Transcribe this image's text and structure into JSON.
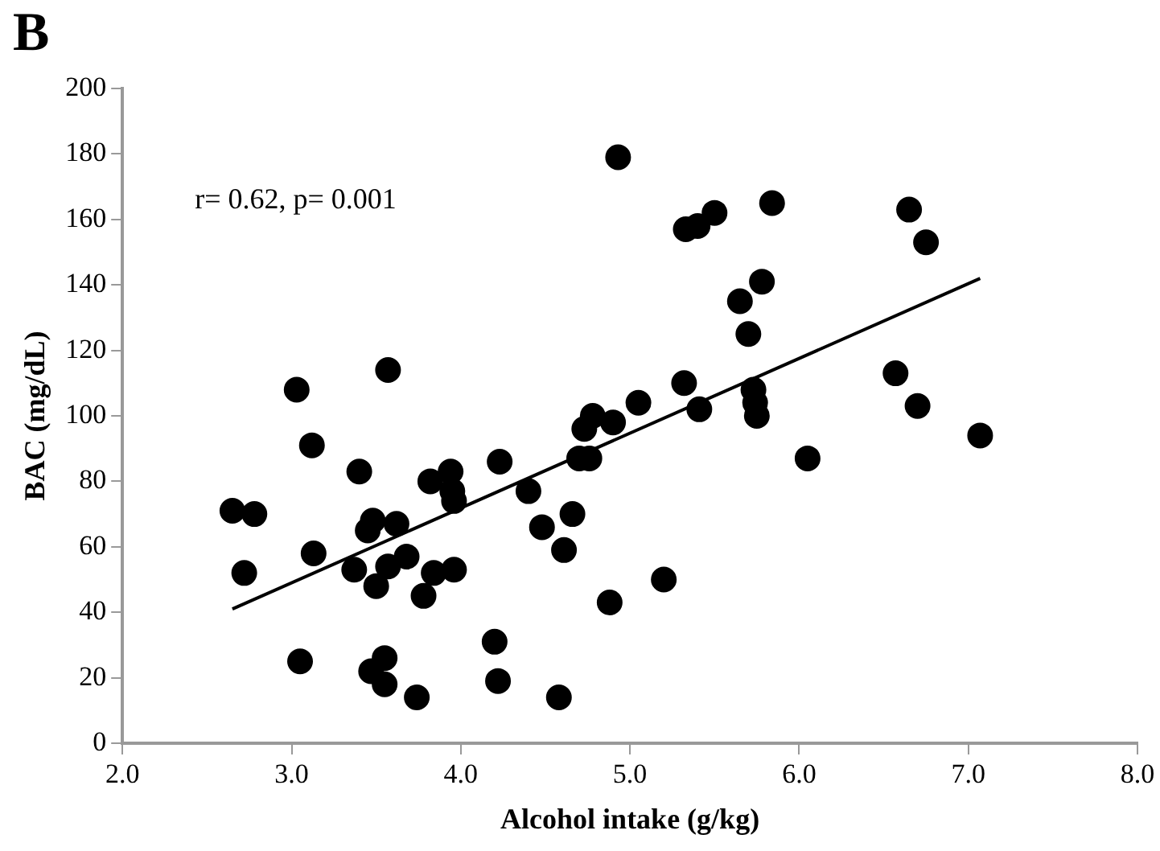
{
  "chart_data": {
    "type": "scatter",
    "title": "B",
    "xlabel": "Alcohol intake (g/kg)",
    "ylabel": "BAC (mg/dL)",
    "annotations": [
      "r= 0.62, p= 0.001"
    ],
    "marker": "circle",
    "grid": false,
    "legend": false,
    "xlim": [
      2,
      8
    ],
    "xticks": [
      {
        "value": 2,
        "label": "2.0"
      },
      {
        "value": 3,
        "label": "3.0"
      },
      {
        "value": 4,
        "label": "4.0"
      },
      {
        "value": 5,
        "label": "5.0"
      },
      {
        "value": 6,
        "label": "6.0"
      },
      {
        "value": 7,
        "label": "7.0"
      },
      {
        "value": 8,
        "label": "8.0"
      }
    ],
    "ylim": [
      0,
      200
    ],
    "yticks": [
      0,
      20,
      40,
      60,
      80,
      100,
      120,
      140,
      160,
      180,
      200
    ],
    "series": [
      {
        "color": "#000000",
        "x": [
          2.65,
          2.72,
          2.78,
          3.03,
          3.05,
          3.12,
          3.13,
          3.37,
          3.4,
          3.45,
          3.48,
          3.5,
          3.47,
          3.55,
          3.55,
          3.57,
          3.57,
          3.62,
          3.68,
          3.74,
          3.78,
          3.82,
          3.84,
          3.94,
          3.95,
          3.96,
          3.96,
          4.2,
          4.22,
          4.23,
          4.4,
          4.48,
          4.58,
          4.61,
          4.66,
          4.7,
          4.73,
          4.76,
          4.78,
          4.88,
          4.9,
          4.93,
          5.05,
          5.2,
          5.32,
          5.33,
          5.4,
          5.41,
          5.5,
          5.65,
          5.7,
          5.73,
          5.74,
          5.75,
          5.78,
          5.84,
          6.05,
          6.57,
          6.65,
          6.7,
          6.75,
          7.07
        ],
        "values": [
          71,
          52,
          70,
          108,
          25,
          91,
          58,
          53,
          83,
          65,
          68,
          48,
          22,
          26,
          18,
          114,
          54,
          67,
          57,
          14,
          45,
          80,
          52,
          83,
          77,
          53,
          74,
          31,
          19,
          86,
          77,
          66,
          14,
          59,
          70,
          87,
          96,
          87,
          100,
          43,
          98,
          179,
          104,
          50,
          110,
          157,
          158,
          102,
          162,
          135,
          125,
          108,
          104,
          100,
          141,
          165,
          87,
          113,
          163,
          103,
          153,
          94
        ]
      },
      {
        "type": "line",
        "color": "#000000",
        "marker": "none",
        "x": [
          2.65,
          7.07
        ],
        "values": [
          41,
          142
        ]
      }
    ]
  }
}
